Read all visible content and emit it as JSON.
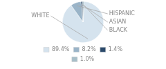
{
  "chart_data": {
    "type": "pie",
    "categories": [
      "WHITE",
      "HISPANIC",
      "ASIAN",
      "BLACK"
    ],
    "values": [
      89.4,
      8.2,
      1.4,
      1.0
    ],
    "value_labels": [
      "89.4%",
      "8.2%",
      "1.4%",
      "1.0%"
    ],
    "colors": [
      "#d5e3ee",
      "#9ab4c8",
      "#2b4a6b",
      "#a8bfc9"
    ],
    "legend": "bottom"
  }
}
